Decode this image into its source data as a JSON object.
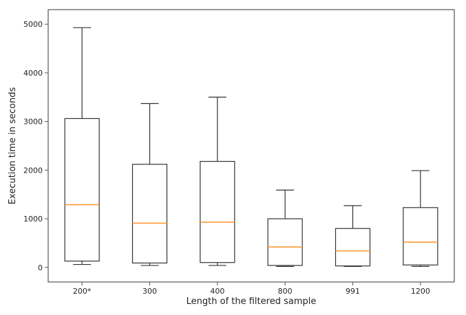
{
  "chart_data": {
    "type": "box",
    "xlabel": "Length of the filtered sample",
    "ylabel": "Execution time in seconds",
    "categories": [
      "200*",
      "300",
      "400",
      "800",
      "991",
      "1200"
    ],
    "ylim": [
      -300,
      5300
    ],
    "yticks": [
      0,
      1000,
      2000,
      3000,
      4000,
      5000
    ],
    "boxes": [
      {
        "label": "200*",
        "whisker_low": 60,
        "q1": 130,
        "median": 1290,
        "q3": 3060,
        "whisker_high": 4930
      },
      {
        "label": "300",
        "whisker_low": 40,
        "q1": 90,
        "median": 910,
        "q3": 2120,
        "whisker_high": 3370
      },
      {
        "label": "400",
        "whisker_low": 40,
        "q1": 100,
        "median": 930,
        "q3": 2180,
        "whisker_high": 3500
      },
      {
        "label": "800",
        "whisker_low": 20,
        "q1": 40,
        "median": 420,
        "q3": 1000,
        "whisker_high": 1590
      },
      {
        "label": "991",
        "whisker_low": 20,
        "q1": 30,
        "median": 340,
        "q3": 800,
        "whisker_high": 1270
      },
      {
        "label": "1200",
        "whisker_low": 20,
        "q1": 50,
        "median": 520,
        "q3": 1230,
        "whisker_high": 1990
      }
    ],
    "colors": {
      "box": "#333333",
      "median": "#ff9933",
      "frame": "#555555"
    },
    "grid": false,
    "legend": "none"
  }
}
